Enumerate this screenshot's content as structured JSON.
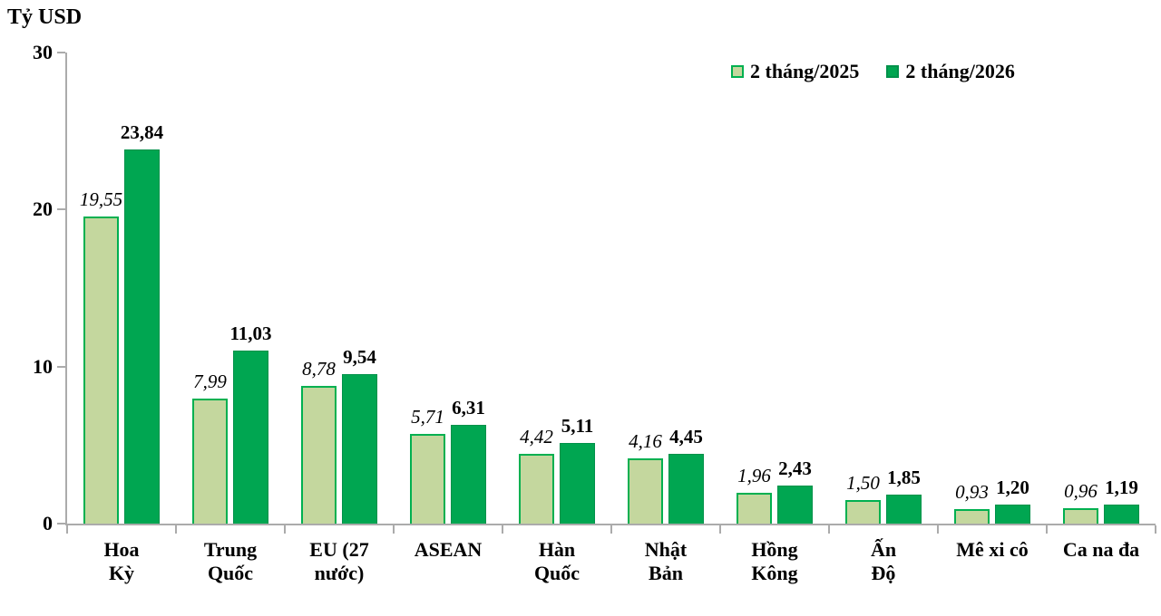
{
  "title": "Tỷ USD",
  "colors": {
    "series_2025_fill": "#C4D79E",
    "series_2025_border": "#00B050",
    "series_2026_fill": "#00A651",
    "series_2026_border": "#00914A",
    "axis": "#ababab",
    "text": "#000000"
  },
  "legend": {
    "items": [
      {
        "label": "2 tháng/2025",
        "fill": "#C4D79E",
        "border": "#00B050"
      },
      {
        "label": "2 tháng/2026",
        "fill": "#00A651",
        "border": "#00914A"
      }
    ]
  },
  "chart_data": {
    "type": "bar",
    "title": "",
    "ylabel": "Tỷ USD",
    "xlabel": "",
    "ylim": [
      0,
      30
    ],
    "yticks": [
      0,
      10,
      20,
      30
    ],
    "grid": false,
    "legend_position": "top-right",
    "categories": [
      "Hoa Kỳ",
      "Trung Quốc",
      "EU (27 nước)",
      "ASEAN",
      "Hàn Quốc",
      "Nhật Bản",
      "Hồng Kông",
      "Ấn Độ",
      "Mê xi cô",
      "Ca na đa"
    ],
    "categories_display": [
      [
        "Hoa",
        "Kỳ"
      ],
      [
        "Trung",
        "Quốc"
      ],
      [
        "EU (27",
        "nước)"
      ],
      [
        "ASEAN"
      ],
      [
        "Hàn",
        "Quốc"
      ],
      [
        "Nhật",
        "Bản"
      ],
      [
        "Hồng",
        "Kông"
      ],
      [
        "Ấn",
        "Độ"
      ],
      [
        "Mê xi cô"
      ],
      [
        "Ca na đa"
      ]
    ],
    "series": [
      {
        "name": "2 tháng/2025",
        "values": [
          19.55,
          7.99,
          8.78,
          5.71,
          4.42,
          4.16,
          1.96,
          1.5,
          0.93,
          0.96
        ],
        "labels": [
          "19,55",
          "7,99",
          "8,78",
          "5,71",
          "4,42",
          "4,16",
          "1,96",
          "1,50",
          "0,93",
          "0,96"
        ]
      },
      {
        "name": "2 tháng/2026",
        "values": [
          23.84,
          11.03,
          9.54,
          6.31,
          5.11,
          4.45,
          2.43,
          1.85,
          1.2,
          1.19
        ],
        "labels": [
          "23,84",
          "11,03",
          "9,54",
          "6,31",
          "5,11",
          "4,45",
          "2,43",
          "1,85",
          "1,20",
          "1,19"
        ]
      }
    ]
  }
}
